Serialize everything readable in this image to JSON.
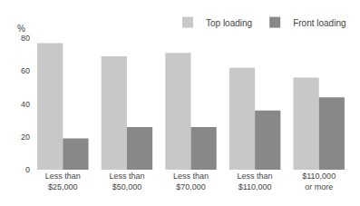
{
  "chart_data": {
    "type": "bar",
    "categories": [
      "Less than\n$25,000",
      "Less than\n$50,000",
      "Less than\n$70,000",
      "Less than\n$110,000",
      "$110,000\nor more"
    ],
    "series": [
      {
        "name": "Top loading",
        "color": "#c8c8c8",
        "values": [
          77,
          69,
          71,
          62,
          56
        ]
      },
      {
        "name": "Front loading",
        "color": "#888888",
        "values": [
          19,
          26,
          26,
          36,
          44
        ]
      }
    ],
    "ylabel": "%",
    "ylim": [
      0,
      80
    ],
    "yticks": [
      0,
      20,
      40,
      60,
      80
    ],
    "grid": false,
    "legend": "upper right"
  }
}
